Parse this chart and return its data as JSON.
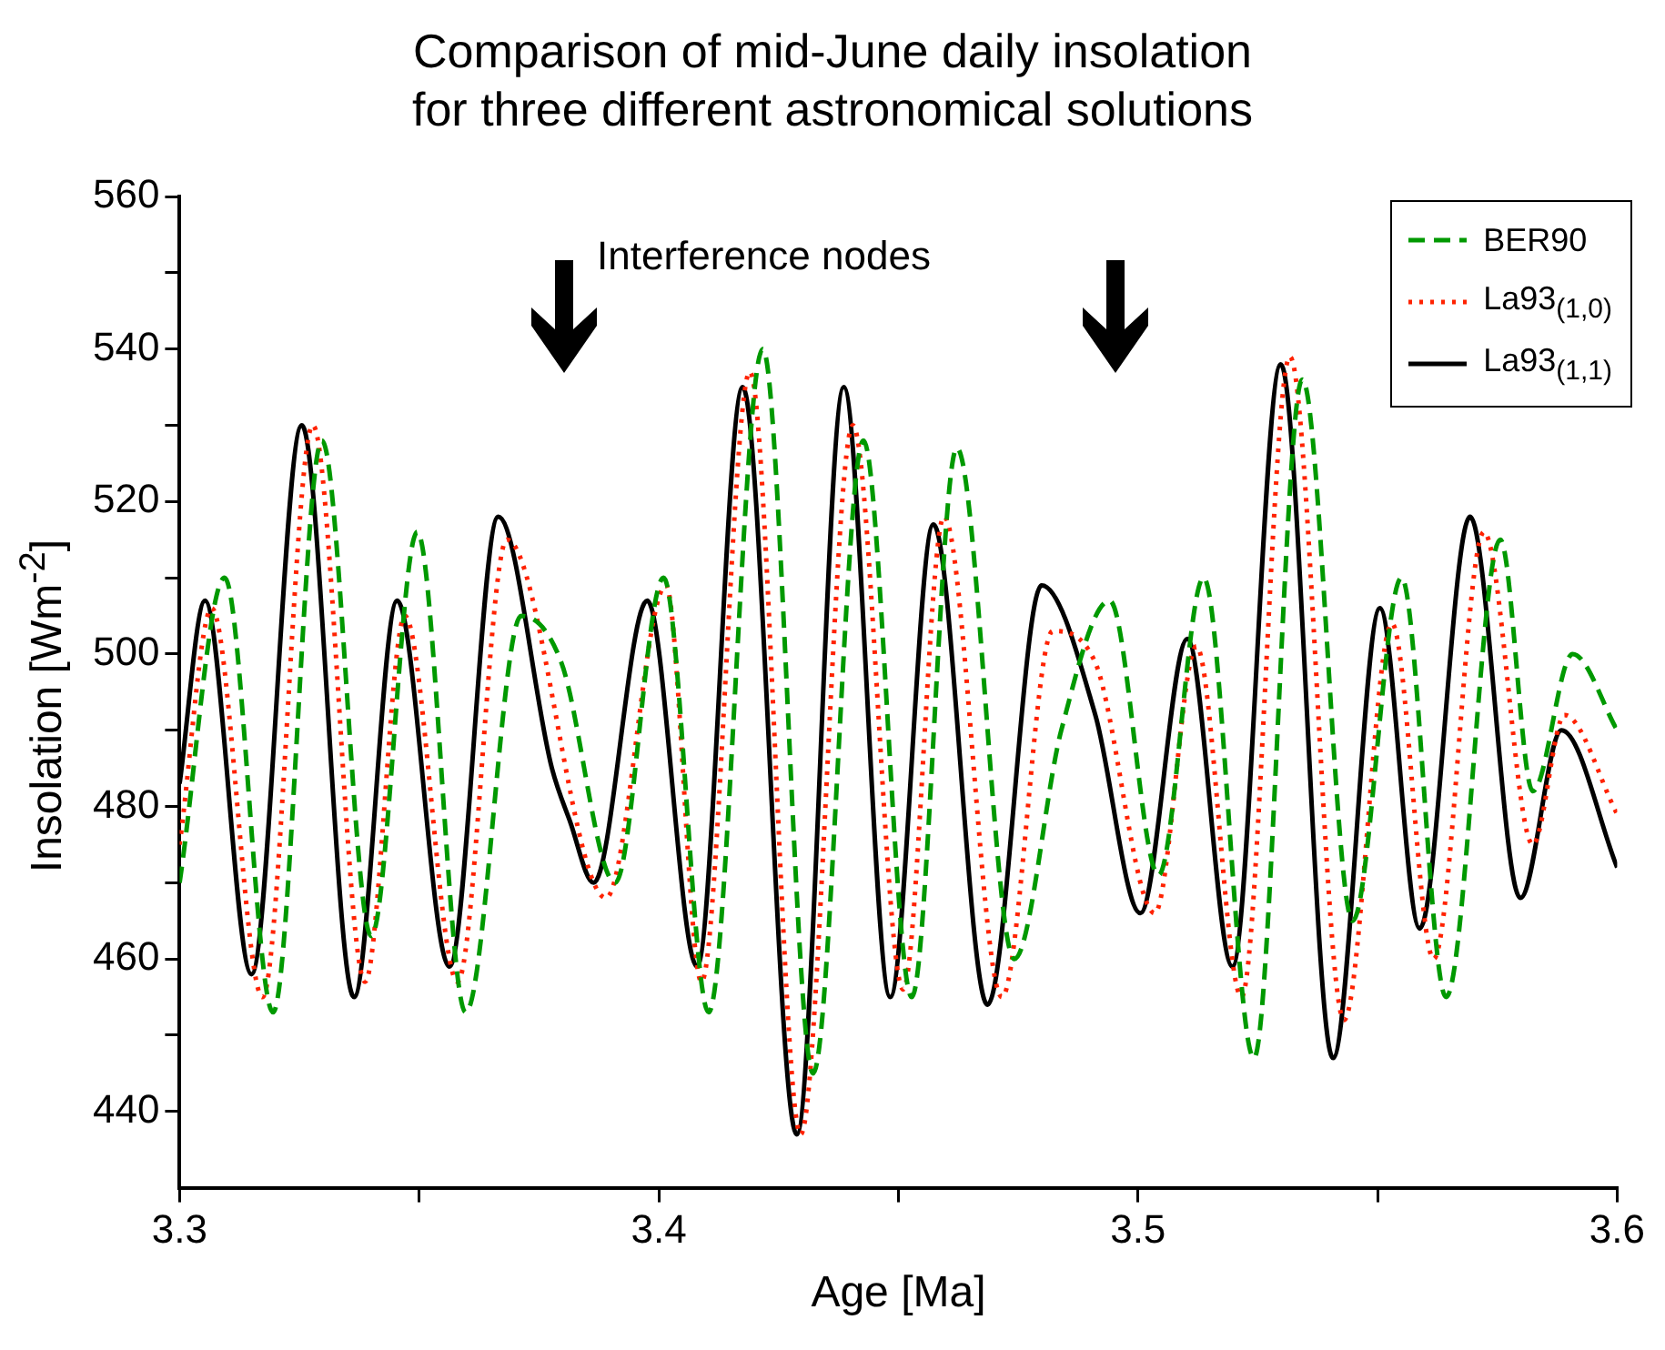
{
  "chart_data": {
    "type": "line",
    "title": "Comparison of mid-June daily insolation\nfor three different astronomical solutions",
    "xlabel": "Age [Ma]",
    "ylabel": "Insolation [Wm$^{-2}$]",
    "annotations": [
      "Interference nodes"
    ],
    "xlim": [
      3.3,
      3.6
    ],
    "xticks": [
      3.3,
      {
        "value": 3.35,
        "label": null
      },
      3.4,
      {
        "value": 3.45,
        "label": null
      },
      3.5,
      {
        "value": 3.55,
        "label": null
      },
      3.6
    ],
    "ylim": [
      430,
      560
    ],
    "yticks": [
      440,
      {
        "value": 450,
        "label": null
      },
      460,
      {
        "value": 470,
        "label": null
      },
      480,
      {
        "value": 490,
        "label": null
      },
      500,
      {
        "value": 510,
        "label": null
      },
      520,
      {
        "value": 530,
        "label": null
      },
      540,
      {
        "value": 550,
        "label": null
      },
      560
    ],
    "grid": false,
    "legend": "top right",
    "marker": "none",
    "series": [
      {
        "name": "BER90",
        "color": "#009900",
        "line_style": "dashed",
        "x": [
          3.3,
          3.3094,
          3.3195,
          3.3297,
          3.34,
          3.3496,
          3.3597,
          3.3713,
          3.3796,
          3.3909,
          3.401,
          3.4104,
          3.4217,
          3.4322,
          3.4427,
          3.4528,
          3.4622,
          3.4742,
          3.484,
          3.4941,
          3.5043,
          3.5137,
          3.5242,
          3.5343,
          3.5448,
          3.555,
          3.5643,
          3.5756,
          3.5824,
          3.5907,
          3.6
        ],
        "values": [
          470,
          510,
          453,
          528,
          463,
          516,
          453,
          505,
          499,
          470,
          510,
          453,
          540,
          445,
          528,
          455,
          527,
          460,
          490,
          507,
          471,
          510,
          447,
          536,
          465,
          510,
          455,
          515,
          482,
          500,
          490
        ]
      },
      {
        "name": "La93$_{(1,0)}$",
        "color": "#ff2200",
        "line_style": "dotted",
        "x": [
          3.3,
          3.3067,
          3.3173,
          3.3278,
          3.3387,
          3.347,
          3.358,
          3.3683,
          3.389,
          3.4015,
          3.4089,
          3.419,
          3.4296,
          3.4405,
          3.451,
          3.4595,
          3.4716,
          3.4822,
          3.491,
          3.5035,
          3.5122,
          3.5216,
          3.5317,
          3.543,
          3.553,
          3.5617,
          3.5722,
          3.5824,
          3.589,
          3.6
        ],
        "values": [
          475,
          506,
          455,
          530,
          457,
          505,
          457,
          515,
          468,
          509,
          457,
          537,
          437,
          530,
          456,
          518,
          455,
          503,
          499,
          466,
          501,
          455,
          539,
          452,
          504,
          460,
          516,
          475,
          492,
          479
        ]
      },
      {
        "name": "La93$_{(1,1)}$",
        "color": "#000000",
        "line_style": "solid",
        "x": [
          3.3,
          3.3053,
          3.315,
          3.3255,
          3.3364,
          3.3454,
          3.3563,
          3.3665,
          3.3777,
          3.3815,
          3.3864,
          3.3976,
          3.408,
          3.4175,
          3.4288,
          3.4386,
          3.4483,
          3.4573,
          3.4686,
          3.4799,
          3.4911,
          3.5005,
          3.5103,
          3.5197,
          3.5298,
          3.5407,
          3.5505,
          3.5588,
          3.5693,
          3.5798,
          3.5884,
          3.6
        ],
        "values": [
          483,
          507,
          458,
          530,
          455,
          507,
          459,
          518,
          485,
          478,
          470,
          507,
          459,
          535,
          437,
          535,
          455,
          517,
          454,
          509,
          492,
          466,
          502,
          459,
          538,
          447,
          506,
          464,
          518,
          468,
          490,
          472
        ]
      }
    ]
  }
}
